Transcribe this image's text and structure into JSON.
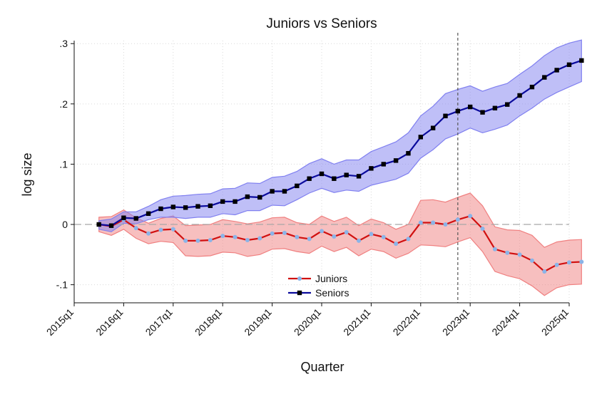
{
  "chart_data": {
    "type": "line",
    "title": "Juniors vs Seniors",
    "xlabel": "Quarter",
    "ylabel": "log size",
    "ylim": [
      -0.13,
      0.305
    ],
    "yticks": [
      {
        "value": 0.3,
        "label": ".3"
      },
      {
        "value": 0.2,
        "label": ".2"
      },
      {
        "value": 0.1,
        "label": ".1"
      },
      {
        "value": 0.0,
        "label": "0"
      },
      {
        "value": -0.1,
        "label": "-.1"
      }
    ],
    "xticks": [
      "2015q1",
      "2016q1",
      "2017q1",
      "2018q1",
      "2019q1",
      "2020q1",
      "2021q1",
      "2022q1",
      "2023q1",
      "2024q1",
      "2025q1"
    ],
    "x_start": "2015q3",
    "x_end": "2025q1",
    "vline_at": "2022q4",
    "hline_at": 0,
    "grid": true,
    "legend_position": "bottom-center",
    "series": [
      {
        "name": "Seniors",
        "color": "#0a0a9c",
        "band_color": "#8080f0",
        "marker": "square",
        "values": [
          0.0,
          -0.002,
          0.011,
          0.01,
          0.018,
          0.026,
          0.029,
          0.028,
          0.03,
          0.031,
          0.038,
          0.038,
          0.046,
          0.045,
          0.055,
          0.055,
          0.064,
          0.076,
          0.084,
          0.076,
          0.082,
          0.08,
          0.093,
          0.1,
          0.106,
          0.118,
          0.145,
          0.16,
          0.18,
          0.188,
          0.195,
          0.186,
          0.193,
          0.199,
          0.214,
          0.228,
          0.244,
          0.256,
          0.265,
          0.272
        ],
        "lower": [
          -0.008,
          -0.012,
          0.002,
          0.001,
          0.008,
          0.012,
          0.012,
          0.01,
          0.012,
          0.012,
          0.018,
          0.016,
          0.023,
          0.023,
          0.032,
          0.031,
          0.041,
          0.052,
          0.06,
          0.053,
          0.057,
          0.055,
          0.065,
          0.07,
          0.075,
          0.085,
          0.11,
          0.124,
          0.142,
          0.15,
          0.16,
          0.152,
          0.158,
          0.165,
          0.18,
          0.193,
          0.208,
          0.219,
          0.228,
          0.237
        ],
        "upper": [
          0.006,
          0.009,
          0.021,
          0.021,
          0.03,
          0.041,
          0.047,
          0.048,
          0.05,
          0.051,
          0.059,
          0.06,
          0.069,
          0.068,
          0.078,
          0.08,
          0.088,
          0.101,
          0.109,
          0.1,
          0.107,
          0.107,
          0.121,
          0.129,
          0.137,
          0.152,
          0.18,
          0.196,
          0.217,
          0.224,
          0.23,
          0.221,
          0.228,
          0.234,
          0.249,
          0.263,
          0.28,
          0.293,
          0.301,
          0.306
        ]
      },
      {
        "name": "Juniors",
        "color": "#d01010",
        "band_color": "#f08080",
        "marker": "circle",
        "marker_color": "#8ab4e8",
        "values": [
          0.0,
          -0.003,
          0.008,
          -0.006,
          -0.015,
          -0.009,
          -0.008,
          -0.027,
          -0.027,
          -0.026,
          -0.019,
          -0.021,
          -0.026,
          -0.023,
          -0.015,
          -0.014,
          -0.021,
          -0.024,
          -0.011,
          -0.02,
          -0.013,
          -0.027,
          -0.016,
          -0.021,
          -0.032,
          -0.024,
          0.003,
          0.003,
          0.0,
          0.008,
          0.014,
          -0.007,
          -0.041,
          -0.047,
          -0.05,
          -0.06,
          -0.078,
          -0.067,
          -0.063,
          -0.062
        ],
        "lower": [
          -0.012,
          -0.018,
          -0.008,
          -0.023,
          -0.032,
          -0.028,
          -0.03,
          -0.052,
          -0.053,
          -0.052,
          -0.046,
          -0.047,
          -0.053,
          -0.05,
          -0.041,
          -0.04,
          -0.045,
          -0.048,
          -0.036,
          -0.045,
          -0.038,
          -0.052,
          -0.041,
          -0.045,
          -0.056,
          -0.048,
          -0.034,
          -0.035,
          -0.037,
          -0.029,
          -0.022,
          -0.045,
          -0.078,
          -0.085,
          -0.09,
          -0.102,
          -0.118,
          -0.105,
          -0.1,
          -0.099
        ],
        "upper": [
          0.012,
          0.013,
          0.024,
          0.011,
          0.002,
          0.01,
          0.014,
          -0.002,
          -0.001,
          0.0,
          0.008,
          0.005,
          0.001,
          0.004,
          0.011,
          0.012,
          0.003,
          0.0,
          0.014,
          0.005,
          0.012,
          -0.002,
          0.009,
          0.003,
          -0.008,
          0.0,
          0.04,
          0.041,
          0.037,
          0.045,
          0.052,
          0.031,
          -0.004,
          -0.009,
          -0.01,
          -0.018,
          -0.038,
          -0.029,
          -0.026,
          -0.025
        ]
      }
    ],
    "legend": [
      {
        "name": "Juniors"
      },
      {
        "name": "Seniors"
      }
    ]
  }
}
